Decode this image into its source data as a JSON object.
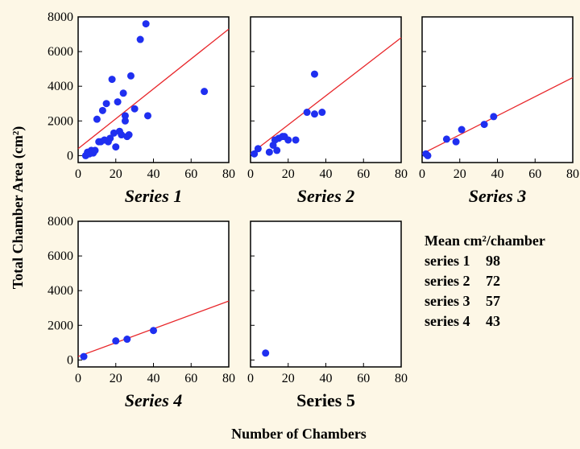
{
  "figure": {
    "ylabel": "Total Chamber Area (cm²)",
    "xlabel": "Number of Chambers"
  },
  "chart_data": [
    {
      "type": "scatter",
      "title": "Series 1",
      "xlim": [
        0,
        80
      ],
      "ylim": [
        0,
        8000
      ],
      "xticks": [
        "0",
        "20",
        "40",
        "60",
        "80"
      ],
      "yticks": [
        "0",
        "2000",
        "4000",
        "6000",
        "8000"
      ],
      "trendline": [
        [
          0,
          400
        ],
        [
          80,
          7300
        ]
      ],
      "points": [
        [
          4,
          0
        ],
        [
          5,
          200
        ],
        [
          6,
          100
        ],
        [
          7,
          300
        ],
        [
          8,
          150
        ],
        [
          9,
          300
        ],
        [
          10,
          2100
        ],
        [
          11,
          800
        ],
        [
          12,
          800
        ],
        [
          13,
          2600
        ],
        [
          14,
          900
        ],
        [
          15,
          3000
        ],
        [
          16,
          800
        ],
        [
          17,
          1000
        ],
        [
          18,
          4400
        ],
        [
          19,
          1300
        ],
        [
          20,
          500
        ],
        [
          21,
          3100
        ],
        [
          22,
          1400
        ],
        [
          23,
          1200
        ],
        [
          24,
          3600
        ],
        [
          25,
          2300
        ],
        [
          25,
          2000
        ],
        [
          26,
          1100
        ],
        [
          27,
          1200
        ],
        [
          28,
          4600
        ],
        [
          30,
          2700
        ],
        [
          33,
          6700
        ],
        [
          36,
          7600
        ],
        [
          37,
          2300
        ],
        [
          67,
          3700
        ]
      ]
    },
    {
      "type": "scatter",
      "title": "Series 2",
      "xlim": [
        0,
        80
      ],
      "ylim": [
        0,
        8000
      ],
      "xticks": [
        "0",
        "20",
        "40",
        "60",
        "80"
      ],
      "yticks": [],
      "trendline": [
        [
          0,
          100
        ],
        [
          80,
          6800
        ]
      ],
      "points": [
        [
          2,
          100
        ],
        [
          4,
          400
        ],
        [
          10,
          200
        ],
        [
          12,
          600
        ],
        [
          13,
          900
        ],
        [
          14,
          300
        ],
        [
          15,
          1000
        ],
        [
          17,
          1100
        ],
        [
          18,
          1100
        ],
        [
          20,
          900
        ],
        [
          24,
          900
        ],
        [
          30,
          2500
        ],
        [
          34,
          2400
        ],
        [
          34,
          4700
        ],
        [
          38,
          2500
        ]
      ]
    },
    {
      "type": "scatter",
      "title": "Series 3",
      "xlim": [
        0,
        80
      ],
      "ylim": [
        0,
        8000
      ],
      "xticks": [
        "0",
        "20",
        "40",
        "60",
        "80"
      ],
      "yticks": [],
      "trendline": [
        [
          0,
          100
        ],
        [
          80,
          4500
        ]
      ],
      "points": [
        [
          2,
          100
        ],
        [
          3,
          0
        ],
        [
          13,
          950
        ],
        [
          18,
          800
        ],
        [
          21,
          1500
        ],
        [
          33,
          1800
        ],
        [
          38,
          2250
        ]
      ]
    },
    {
      "type": "scatter",
      "title": "Series 4",
      "xlim": [
        0,
        80
      ],
      "ylim": [
        0,
        8000
      ],
      "xticks": [
        "0",
        "20",
        "40",
        "60",
        "80"
      ],
      "yticks": [
        "0",
        "2000",
        "4000",
        "6000",
        "8000"
      ],
      "trendline": [
        [
          0,
          200
        ],
        [
          80,
          3400
        ]
      ],
      "points": [
        [
          3,
          200
        ],
        [
          20,
          1100
        ],
        [
          26,
          1200
        ],
        [
          40,
          1700
        ]
      ]
    },
    {
      "type": "scatter",
      "title": "Series 5",
      "xlim": [
        0,
        80
      ],
      "ylim": [
        0,
        8000
      ],
      "xticks": [
        "0",
        "20",
        "40",
        "60",
        "80"
      ],
      "yticks": [],
      "trendline": null,
      "points": [
        [
          8,
          400
        ]
      ]
    }
  ],
  "stats": {
    "heading": "Mean cm²/chamber",
    "rows": [
      {
        "label": "series 1",
        "value": "98"
      },
      {
        "label": "series 2",
        "value": "72"
      },
      {
        "label": "series 3",
        "value": "57"
      },
      {
        "label": "series 4",
        "value": "43"
      }
    ]
  },
  "colors": {
    "point": "#1f2ff0",
    "trendline": "#e8262a",
    "axis": "#000000",
    "plot_bg": "#ffffff"
  }
}
